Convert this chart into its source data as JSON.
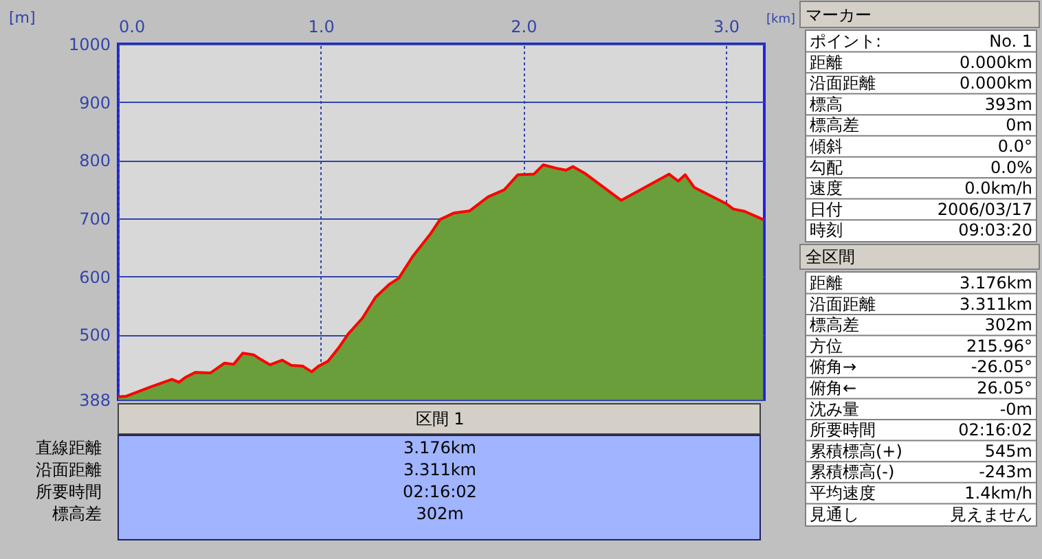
{
  "chart_data": {
    "type": "area",
    "xlabel": "[km]",
    "ylabel": "[m]",
    "xlim": [
      0,
      3.19
    ],
    "ylim": [
      388,
      1000
    ],
    "xticks": [
      {
        "value": 0,
        "label": "0.0"
      },
      {
        "value": 1,
        "label": "1.0"
      },
      {
        "value": 2,
        "label": "2.0"
      },
      {
        "value": 3,
        "label": "3.0"
      }
    ],
    "yticks": [
      388,
      500,
      600,
      700,
      800,
      900,
      1000
    ],
    "grid": true,
    "series": [
      {
        "color": "#6a9e3a",
        "x": [
          0,
          0.04,
          0.16,
          0.265,
          0.3,
          0.33,
          0.38,
          0.455,
          0.525,
          0.57,
          0.615,
          0.67,
          0.705,
          0.75,
          0.81,
          0.855,
          0.91,
          0.955,
          0.99,
          1.035,
          1.09,
          1.135,
          1.205,
          1.27,
          1.34,
          1.385,
          1.453,
          1.543,
          1.589,
          1.656,
          1.736,
          1.826,
          1.906,
          1.973,
          2.052,
          2.098,
          2.166,
          2.211,
          2.245,
          2.302,
          2.483,
          2.72,
          2.765,
          2.799,
          2.845,
          3.003,
          3.037,
          3.093,
          3.184
        ],
        "values": [
          393,
          394,
          410,
          423,
          418,
          426,
          435,
          434,
          451,
          449,
          468,
          465,
          457,
          448,
          456,
          447,
          446,
          436,
          446,
          454,
          478,
          501,
          528,
          564,
          587,
          597,
          634,
          674,
          698,
          709,
          713,
          737,
          749,
          775,
          776,
          792,
          786,
          783,
          789,
          778,
          731,
          776,
          764,
          775,
          753,
          725,
          716,
          712,
          698
        ]
      },
      {
        "type": "line",
        "color": "#ff0000",
        "x": [
          0,
          0.04,
          0.16,
          0.265,
          0.3,
          0.33,
          0.38,
          0.455,
          0.525,
          0.57,
          0.615,
          0.67,
          0.705,
          0.75,
          0.81,
          0.855,
          0.91,
          0.955,
          0.99,
          1.035,
          1.09,
          1.135,
          1.205,
          1.27,
          1.34,
          1.385,
          1.453,
          1.543,
          1.589,
          1.656,
          1.736,
          1.826,
          1.906,
          1.973,
          2.052,
          2.098,
          2.166,
          2.211,
          2.245,
          2.302,
          2.483,
          2.72,
          2.765,
          2.799,
          2.845,
          3.003,
          3.037,
          3.093,
          3.184
        ],
        "values": [
          393,
          394,
          410,
          423,
          418,
          426,
          435,
          434,
          451,
          449,
          468,
          465,
          457,
          448,
          456,
          447,
          446,
          436,
          446,
          454,
          478,
          501,
          528,
          564,
          587,
          597,
          634,
          674,
          698,
          709,
          713,
          737,
          749,
          775,
          776,
          792,
          786,
          783,
          789,
          778,
          731,
          776,
          764,
          775,
          753,
          725,
          716,
          712,
          698
        ]
      }
    ],
    "annotations": [
      "マーカー",
      "ポイント:",
      "No. 1",
      "距離",
      "0.000km",
      "沿面距離",
      "0.000km",
      "標高",
      "393m",
      "標高差",
      "0m",
      "傾斜",
      "0.0°",
      "勾配",
      "0.0%",
      "速度",
      "0.0km/h",
      "日付",
      "2006/03/17",
      "時刻",
      "09:03:20",
      "全区間",
      "距離",
      "3.176km",
      "沿面距離",
      "3.311km",
      "標高差",
      "302m",
      "方位",
      "215.96°",
      "俯角→",
      "-26.05°",
      "俯角←",
      "26.05°",
      "沈み量",
      "-0m",
      "所要時間",
      "02:16:02",
      "累積標高(+)",
      "545m",
      "累積標高(-)",
      "-243m",
      "平均速度",
      "1.4km/h",
      "見通し",
      "見えません",
      "区間 1",
      "直線距離",
      "3.176km",
      "沿面距離",
      "3.311km",
      "所要時間",
      "02:16:02",
      "標高差",
      "302m"
    ]
  }
}
